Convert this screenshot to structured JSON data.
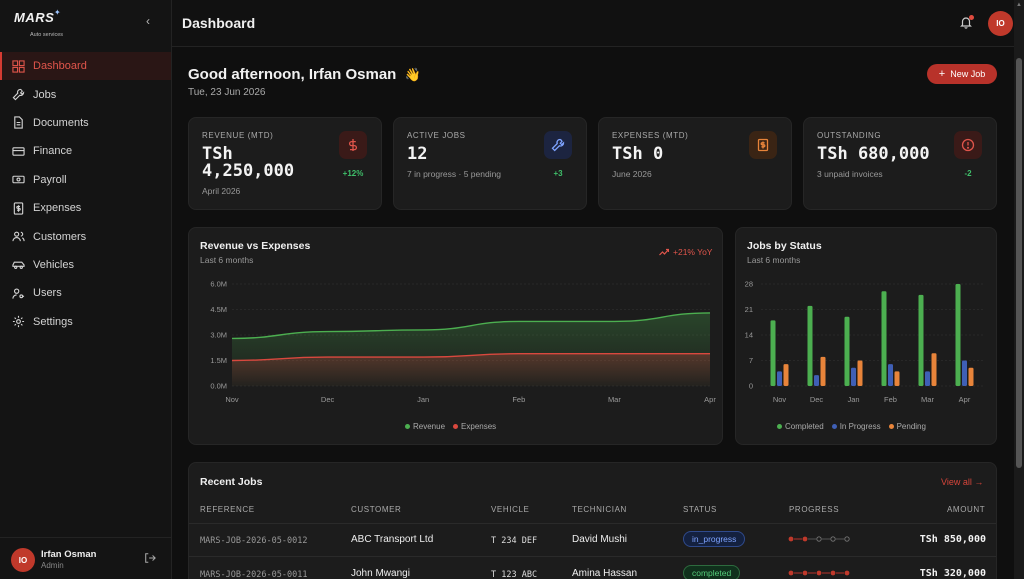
{
  "brand": {
    "logo_text": "MARS",
    "logo_subtitle": "Auto services"
  },
  "sidebar": {
    "items": [
      {
        "label": "Dashboard",
        "icon": "grid-icon",
        "active": true
      },
      {
        "label": "Jobs",
        "icon": "wrench-icon"
      },
      {
        "label": "Documents",
        "icon": "document-icon"
      },
      {
        "label": "Finance",
        "icon": "card-icon"
      },
      {
        "label": "Payroll",
        "icon": "cash-icon"
      },
      {
        "label": "Expenses",
        "icon": "receipt-icon"
      },
      {
        "label": "Customers",
        "icon": "users-icon"
      },
      {
        "label": "Vehicles",
        "icon": "car-icon"
      },
      {
        "label": "Users",
        "icon": "user-key-icon"
      },
      {
        "label": "Settings",
        "icon": "gear-icon"
      }
    ],
    "user": {
      "initials": "IO",
      "name": "Irfan Osman",
      "role": "Admin"
    }
  },
  "header": {
    "title": "Dashboard",
    "avatar_initials": "IO"
  },
  "main": {
    "greeting": "Good afternoon, Irfan Osman",
    "greeting_emoji": "👋",
    "date": "Tue, 23 Jun 2026",
    "new_job_label": "New Job"
  },
  "stats": [
    {
      "label": "REVENUE (MTD)",
      "value": "TSh 4,250,000",
      "sub": "April 2026",
      "delta": "+12%",
      "icon": "dollar-icon",
      "color": "#e0554b"
    },
    {
      "label": "ACTIVE JOBS",
      "value": "12",
      "sub": "7 in progress · 5 pending",
      "delta": "+3",
      "icon": "wrench-icon",
      "color": "#7ea3ff"
    },
    {
      "label": "EXPENSES (MTD)",
      "value": "TSh 0",
      "sub": "June 2026",
      "delta": "",
      "icon": "receipt-icon",
      "color": "#e8843a"
    },
    {
      "label": "OUTSTANDING",
      "value": "TSh 680,000",
      "sub": "3 unpaid invoices",
      "delta": "-2",
      "icon": "alert-icon",
      "color": "#e0554b"
    }
  ],
  "revenue_chart": {
    "title": "Revenue vs Expenses",
    "subtitle": "Last 6 months",
    "trend": "+21% YoY",
    "legend": [
      "Revenue",
      "Expenses"
    ]
  },
  "jobs_chart": {
    "title": "Jobs by Status",
    "subtitle": "Last 6 months",
    "legend": [
      "Completed",
      "In Progress",
      "Pending"
    ]
  },
  "chart_data": [
    {
      "type": "area",
      "title": "Revenue vs Expenses",
      "categories": [
        "Nov",
        "Dec",
        "Jan",
        "Feb",
        "Mar",
        "Apr"
      ],
      "y_ticks": [
        "0.0M",
        "1.5M",
        "3.0M",
        "4.5M",
        "6.0M"
      ],
      "ylim": [
        0,
        6.0
      ],
      "series": [
        {
          "name": "Revenue",
          "color": "#4caf50",
          "values": [
            2.8,
            3.2,
            3.3,
            3.8,
            3.8,
            4.3
          ]
        },
        {
          "name": "Expenses",
          "color": "#d9483e",
          "values": [
            1.5,
            1.7,
            1.7,
            1.9,
            1.9,
            1.9
          ]
        }
      ],
      "legend_position": "bottom-center",
      "grid": true
    },
    {
      "type": "bar",
      "title": "Jobs by Status",
      "categories": [
        "Nov",
        "Dec",
        "Jan",
        "Feb",
        "Mar",
        "Apr"
      ],
      "y_ticks": [
        "0",
        "7",
        "14",
        "21",
        "28"
      ],
      "ylim": [
        0,
        28
      ],
      "series": [
        {
          "name": "Completed",
          "color": "#4caf50",
          "values": [
            18,
            22,
            19,
            26,
            25,
            28
          ]
        },
        {
          "name": "In Progress",
          "color": "#3f5fb5",
          "values": [
            4,
            3,
            5,
            6,
            4,
            7
          ]
        },
        {
          "name": "Pending",
          "color": "#e8843a",
          "values": [
            6,
            8,
            7,
            4,
            9,
            5
          ]
        }
      ],
      "legend_position": "bottom-center",
      "grid": true
    }
  ],
  "recent_jobs": {
    "title": "Recent Jobs",
    "view_all": "View all →",
    "columns": [
      "REFERENCE",
      "CUSTOMER",
      "VEHICLE",
      "TECHNICIAN",
      "STATUS",
      "PROGRESS",
      "AMOUNT"
    ],
    "rows": [
      {
        "reference": "MARS-JOB-2026-05-0012",
        "customer": "ABC Transport Ltd",
        "vehicle": "T 234 DEF",
        "technician": "David Mushi",
        "status": "in_progress",
        "progress_steps": 5,
        "progress_done": 2,
        "amount": "TSh 850,000"
      },
      {
        "reference": "MARS-JOB-2026-05-0011",
        "customer": "John Mwangi",
        "vehicle": "T 123 ABC",
        "technician": "Amina Hassan",
        "status": "completed",
        "progress_steps": 5,
        "progress_done": 5,
        "amount": "TSh 320,000"
      }
    ]
  }
}
